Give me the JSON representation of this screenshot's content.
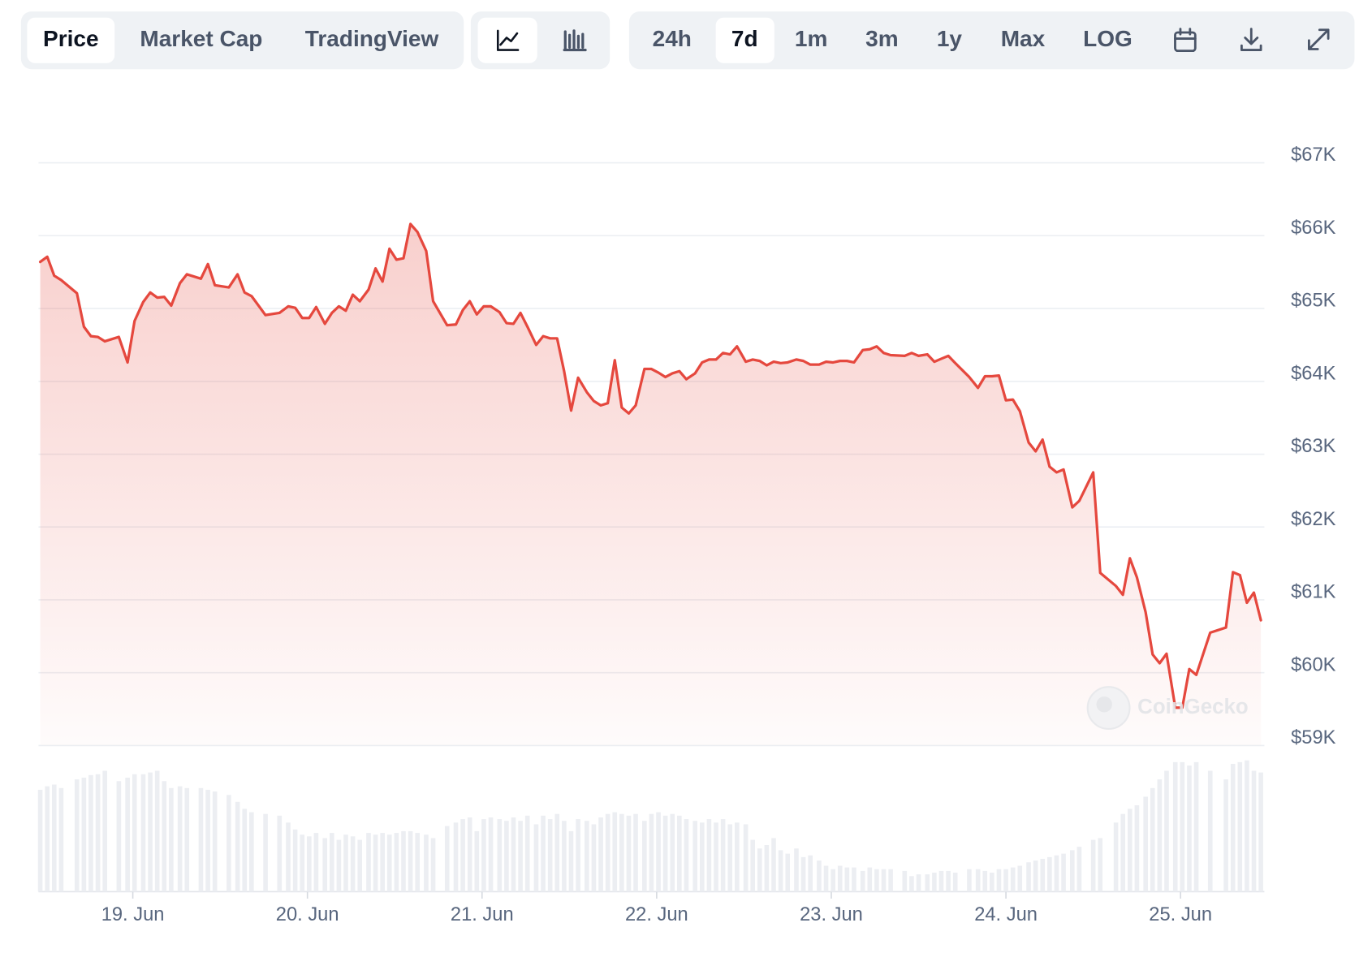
{
  "toolbar": {
    "tabs": [
      "Price",
      "Market Cap",
      "TradingView"
    ],
    "ranges": [
      "24h",
      "7d",
      "1m",
      "3m",
      "1y",
      "Max",
      "LOG"
    ]
  },
  "watermark": "CoinGecko",
  "chart_data": {
    "type": "area-line",
    "color": "#e5483e",
    "volume_color": "#eceef2",
    "grid": true,
    "xlim": [
      18.46,
      25.48
    ],
    "ylim": [
      59000,
      67000
    ],
    "xticks": [
      {
        "value": 19,
        "label": "19. Jun"
      },
      {
        "value": 20,
        "label": "20. Jun"
      },
      {
        "value": 21,
        "label": "21. Jun"
      },
      {
        "value": 22,
        "label": "22. Jun"
      },
      {
        "value": 23,
        "label": "23. Jun"
      },
      {
        "value": 24,
        "label": "24. Jun"
      },
      {
        "value": 25,
        "label": "25. Jun"
      }
    ],
    "yticks": [
      {
        "value": 59000,
        "label": "$59K"
      },
      {
        "value": 60000,
        "label": "$60K"
      },
      {
        "value": 61000,
        "label": "$61K"
      },
      {
        "value": 62000,
        "label": "$62K"
      },
      {
        "value": 63000,
        "label": "$63K"
      },
      {
        "value": 64000,
        "label": "$64K"
      },
      {
        "value": 65000,
        "label": "$65K"
      },
      {
        "value": 66000,
        "label": "$66K"
      },
      {
        "value": 67000,
        "label": "$67K"
      }
    ],
    "x": [
      18.47,
      18.51,
      18.55,
      18.59,
      18.68,
      18.72,
      18.76,
      18.8,
      18.84,
      18.92,
      18.97,
      19.01,
      19.06,
      19.1,
      19.14,
      19.18,
      19.22,
      19.27,
      19.31,
      19.39,
      19.43,
      19.47,
      19.55,
      19.6,
      19.64,
      19.68,
      19.76,
      19.84,
      19.89,
      19.93,
      19.97,
      20.01,
      20.05,
      20.1,
      20.14,
      20.18,
      20.22,
      20.26,
      20.3,
      20.35,
      20.39,
      20.43,
      20.47,
      20.51,
      20.55,
      20.59,
      20.63,
      20.68,
      20.72,
      20.8,
      20.85,
      20.89,
      20.93,
      20.97,
      21.01,
      21.05,
      21.1,
      21.14,
      21.18,
      21.22,
      21.26,
      21.31,
      21.35,
      21.39,
      21.43,
      21.47,
      21.51,
      21.55,
      21.6,
      21.64,
      21.68,
      21.72,
      21.76,
      21.8,
      21.84,
      21.88,
      21.93,
      21.97,
      22.01,
      22.05,
      22.09,
      22.13,
      22.17,
      22.22,
      22.26,
      22.3,
      22.34,
      22.38,
      22.42,
      22.46,
      22.51,
      22.55,
      22.59,
      22.63,
      22.67,
      22.71,
      22.75,
      22.8,
      22.84,
      22.88,
      22.93,
      22.97,
      23.01,
      23.05,
      23.09,
      23.13,
      23.18,
      23.22,
      23.26,
      23.3,
      23.34,
      23.42,
      23.46,
      23.5,
      23.55,
      23.59,
      23.63,
      23.67,
      23.71,
      23.79,
      23.84,
      23.88,
      23.92,
      23.96,
      24.0,
      24.04,
      24.08,
      24.13,
      24.17,
      24.21,
      24.25,
      24.29,
      24.33,
      24.38,
      24.42,
      24.5,
      24.54,
      24.63,
      24.67,
      24.71,
      24.75,
      24.8,
      24.84,
      24.88,
      24.92,
      24.97,
      25.01,
      25.05,
      25.09,
      25.17,
      25.26,
      25.3,
      25.34,
      25.38,
      25.42,
      25.46
    ],
    "values": [
      65640,
      65710,
      65450,
      65390,
      65210,
      64750,
      64620,
      64610,
      64550,
      64610,
      64260,
      64830,
      65090,
      65220,
      65150,
      65160,
      65040,
      65350,
      65470,
      65410,
      65610,
      65320,
      65290,
      65470,
      65220,
      65170,
      64910,
      64940,
      65030,
      65010,
      64870,
      64870,
      65020,
      64790,
      64940,
      65030,
      64970,
      65190,
      65100,
      65260,
      65550,
      65370,
      65820,
      65670,
      65690,
      66160,
      66050,
      65790,
      65100,
      64770,
      64780,
      64980,
      65100,
      64920,
      65030,
      65030,
      64950,
      64800,
      64790,
      64940,
      64750,
      64500,
      64620,
      64590,
      64590,
      64140,
      63600,
      64050,
      63850,
      63730,
      63670,
      63700,
      64290,
      63640,
      63560,
      63670,
      64170,
      64170,
      64120,
      64060,
      64110,
      64140,
      64030,
      64110,
      64260,
      64300,
      64300,
      64390,
      64370,
      64480,
      64270,
      64300,
      64280,
      64220,
      64270,
      64250,
      64260,
      64300,
      64280,
      64230,
      64230,
      64270,
      64260,
      64280,
      64280,
      64260,
      64430,
      64440,
      64480,
      64390,
      64360,
      64350,
      64390,
      64350,
      64370,
      64270,
      64310,
      64350,
      64250,
      64060,
      63910,
      64070,
      64070,
      64080,
      63740,
      63750,
      63590,
      63160,
      63040,
      63200,
      62830,
      62750,
      62790,
      62270,
      62360,
      62750,
      61370,
      61190,
      61070,
      61570,
      61310,
      60830,
      60250,
      60130,
      60260,
      59520,
      59520,
      60050,
      59970,
      60550,
      60620,
      61380,
      61340,
      60960,
      61100,
      60720
    ],
    "volume": [
      118,
      122,
      124,
      120,
      130,
      132,
      135,
      136,
      140,
      128,
      132,
      136,
      136,
      138,
      140,
      128,
      120,
      122,
      120,
      120,
      118,
      116,
      112,
      104,
      96,
      92,
      90,
      88,
      80,
      72,
      66,
      64,
      68,
      62,
      68,
      60,
      66,
      64,
      60,
      68,
      66,
      68,
      66,
      68,
      70,
      70,
      68,
      66,
      62,
      76,
      80,
      84,
      86,
      70,
      84,
      86,
      84,
      82,
      86,
      82,
      88,
      78,
      88,
      84,
      90,
      82,
      70,
      84,
      82,
      78,
      86,
      90,
      92,
      90,
      88,
      90,
      82,
      90,
      92,
      88,
      90,
      88,
      84,
      82,
      80,
      84,
      80,
      84,
      78,
      80,
      78,
      60,
      50,
      54,
      62,
      48,
      44,
      50,
      40,
      42,
      36,
      30,
      26,
      30,
      28,
      28,
      24,
      28,
      26,
      26,
      26,
      24,
      18,
      20,
      20,
      22,
      24,
      24,
      22,
      26,
      26,
      24,
      22,
      26,
      26,
      28,
      30,
      34,
      36,
      38,
      40,
      42,
      44,
      48,
      52,
      60,
      62,
      80,
      90,
      96,
      100,
      110,
      120,
      130,
      140,
      150,
      150,
      146,
      150,
      140,
      130,
      148,
      150,
      152,
      140,
      138
    ]
  }
}
